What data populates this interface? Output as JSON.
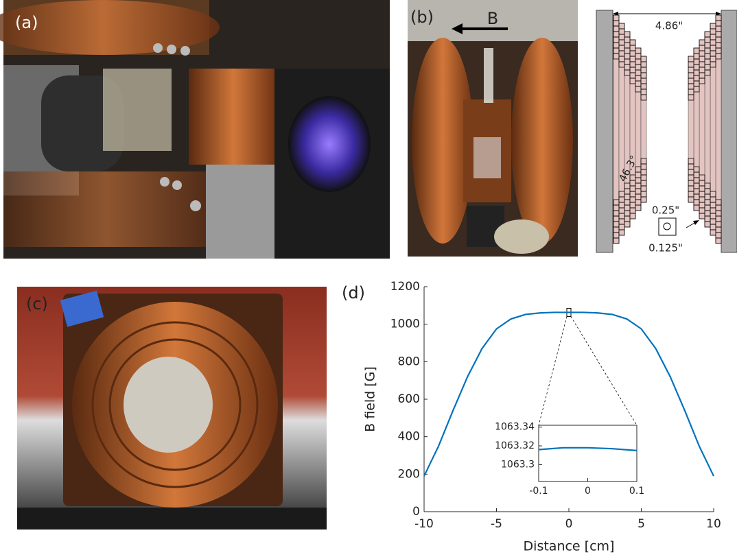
{
  "panels": {
    "a": "(a)",
    "b": "(b)",
    "c": "(c)",
    "d": "(d)"
  },
  "photo_b": {
    "arrow_label": "B"
  },
  "diagram": {
    "width": "4.86\"",
    "angle": "46.3°",
    "wire_outer": "0.25\"",
    "wire_inner": "0.125\""
  },
  "chart_data": [
    {
      "type": "line",
      "x_label": "Distance [cm]",
      "y_label": "B field [G]",
      "x": [
        -10,
        -9,
        -8,
        -7,
        -6,
        -5,
        -4,
        -3,
        -2,
        -1,
        0,
        1,
        2,
        3,
        4,
        5,
        6,
        7,
        8,
        9,
        10
      ],
      "values": [
        190,
        350,
        540,
        720,
        870,
        975,
        1028,
        1052,
        1060,
        1063,
        1063,
        1063,
        1060,
        1052,
        1028,
        975,
        870,
        720,
        540,
        350,
        190
      ],
      "color": "#0072bd",
      "xlim": [
        -10,
        10
      ],
      "ylim": [
        0,
        1200
      ],
      "xticks": [
        -10,
        -5,
        0,
        5,
        10
      ],
      "yticks": [
        0,
        200,
        400,
        600,
        800,
        1000,
        1200
      ]
    },
    {
      "type": "line",
      "x": [
        -0.1,
        -0.05,
        0,
        0.05,
        0.1
      ],
      "values": [
        1063.316,
        1063.318,
        1063.318,
        1063.317,
        1063.315
      ],
      "color": "#0072bd",
      "xlim": [
        -0.1,
        0.1
      ],
      "ylim": [
        1063.282,
        1063.342
      ],
      "xticks": [
        -0.1,
        0,
        0.1
      ],
      "yticks": [
        1063.3,
        1063.32,
        1063.34
      ]
    }
  ]
}
